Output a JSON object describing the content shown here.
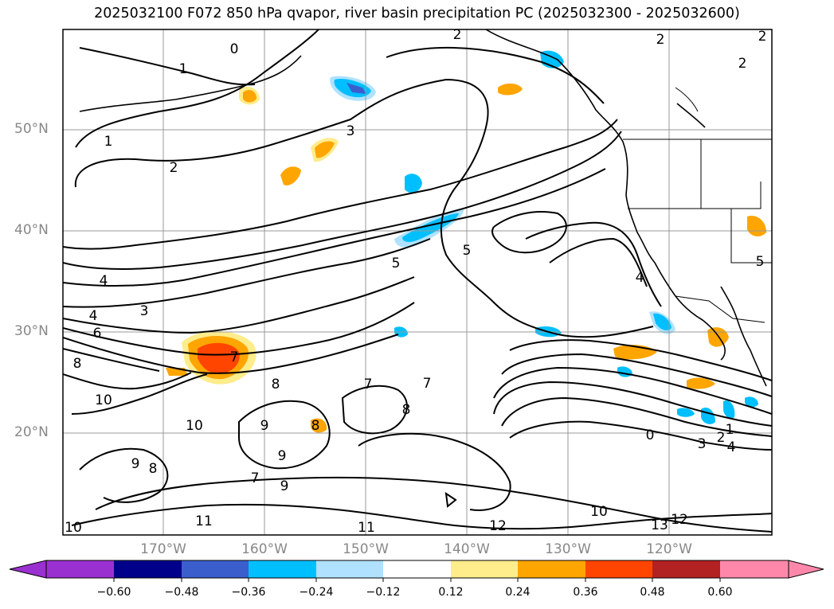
{
  "title": "2025032100 F072 850 hPa qvapor, river basin precipitation PC (2025032300 - 2025032600)",
  "lat_labels": [
    "50°N",
    "40°N",
    "30°N",
    "20°N"
  ],
  "lon_labels": [
    "170°W",
    "160°W",
    "150°W",
    "140°W",
    "130°W",
    "120°W"
  ],
  "colorbar": {
    "ticks": [
      "−0.60",
      "−0.48",
      "−0.36",
      "−0.24",
      "−0.12",
      "0.12",
      "0.24",
      "0.36",
      "0.48",
      "0.60"
    ],
    "colors": [
      "#9b30d0",
      "#00008b",
      "#3a5fcd",
      "#00bfff",
      "#b0e2ff",
      "#ffffff",
      "#ffec8b",
      "#ffa500",
      "#ff4500",
      "#b22222",
      "#ff88aa"
    ],
    "under_color": "#9b30d0",
    "over_color": "#ff88aa"
  },
  "contour_labels": [
    "2",
    "0",
    "2",
    "2",
    "2",
    "1",
    "1",
    "2",
    "3",
    "5",
    "4",
    "3",
    "4",
    "6",
    "7",
    "8",
    "10",
    "10",
    "8",
    "9",
    "8",
    "9",
    "8",
    "9",
    "7",
    "5",
    "4",
    "0",
    "1",
    "2",
    "3",
    "4",
    "10",
    "13",
    "12",
    "12",
    "11",
    "11",
    "10",
    "9",
    "5",
    "8",
    "7",
    "7"
  ],
  "colors": {
    "positive": "#ff4500",
    "positive_light": "#ffa500",
    "positive_pale": "#ffec8b",
    "negative": "#00bfff",
    "negative_pale": "#b0e2ff",
    "negative_dark": "#3a5fcd"
  }
}
